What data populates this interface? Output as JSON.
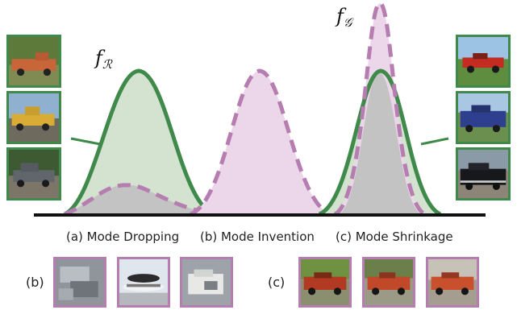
{
  "symbols": {
    "real": {
      "base": "f",
      "sub": "ℛ"
    },
    "gen": {
      "base": "f",
      "sub": "𝒢"
    }
  },
  "captions": {
    "a": "(a) Mode Dropping",
    "b": "(b) Mode Invention",
    "c": "(c) Mode Shrinkage"
  },
  "row_labels": {
    "b": "(b)",
    "c": "(c)"
  },
  "colors": {
    "real_line": "#3f8a4a",
    "real_fill": "#d3e3cf",
    "gen_line": "#b67db1",
    "gen_fill": "#ecd7ea",
    "overlap_fill": "#c3c3c3",
    "axis": "#111111"
  },
  "thumbnails": {
    "left": [
      "orange-pickup-truck",
      "yellow-pickup-truck",
      "gray-pickup-truck"
    ],
    "right": [
      "red-convertible",
      "blue-vintage-car",
      "black-vintage-car"
    ],
    "bottom_b": [
      "damaged-machinery",
      "space-shuttle-on-carrier",
      "crumpled-white-car"
    ],
    "bottom_c": [
      "red-muscle-convertible-1",
      "red-muscle-convertible-2",
      "red-muscle-convertible-3"
    ]
  }
}
